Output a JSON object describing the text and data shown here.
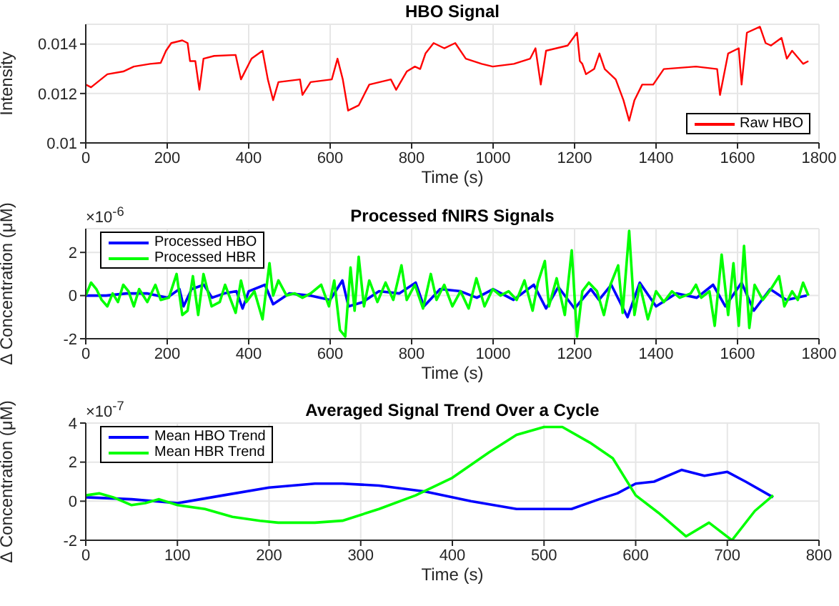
{
  "chart_data": [
    {
      "type": "line",
      "title": "HBO Signal",
      "xlabel": "Time (s)",
      "ylabel": "Intensity",
      "xlim": [
        0,
        1800
      ],
      "xticks": [
        0,
        200,
        400,
        600,
        800,
        1000,
        1200,
        1400,
        1600,
        1800
      ],
      "ylim": [
        0.01,
        0.0148
      ],
      "yticks": [
        0.01,
        0.012,
        0.014
      ],
      "grid": true,
      "legend": "bottom right",
      "series": [
        {
          "name": "Raw HBO",
          "color": "#ff0000",
          "x": [
            0,
            13,
            53,
            92,
            118,
            158,
            184,
            197,
            210,
            237,
            250,
            256,
            269,
            279,
            289,
            315,
            368,
            381,
            407,
            434,
            447,
            460,
            473,
            526,
            532,
            552,
            604,
            618,
            631,
            644,
            670,
            696,
            749,
            762,
            788,
            808,
            821,
            834,
            854,
            880,
            907,
            933,
            972,
            999,
            1051,
            1091,
            1104,
            1117,
            1130,
            1183,
            1206,
            1213,
            1219,
            1228,
            1248,
            1261,
            1274,
            1301,
            1320,
            1334,
            1347,
            1366,
            1393,
            1419,
            1498,
            1550,
            1557,
            1577,
            1603,
            1610,
            1623,
            1655,
            1669,
            1682,
            1708,
            1721,
            1734,
            1761,
            1774
          ],
          "values": [
            0.01236,
            0.01225,
            0.01278,
            0.01289,
            0.01309,
            0.0132,
            0.01324,
            0.01373,
            0.01404,
            0.01415,
            0.01404,
            0.01331,
            0.01331,
            0.01215,
            0.01341,
            0.01352,
            0.01356,
            0.01257,
            0.01341,
            0.01373,
            0.01257,
            0.01173,
            0.01246,
            0.01257,
            0.01194,
            0.01246,
            0.01257,
            0.01341,
            0.01257,
            0.01131,
            0.01152,
            0.01236,
            0.01257,
            0.01215,
            0.01289,
            0.01309,
            0.01299,
            0.01362,
            0.01404,
            0.01383,
            0.01404,
            0.01341,
            0.0132,
            0.01309,
            0.0132,
            0.01341,
            0.01383,
            0.01236,
            0.01373,
            0.01394,
            0.01446,
            0.01331,
            0.0132,
            0.01278,
            0.01299,
            0.01362,
            0.01299,
            0.01257,
            0.01173,
            0.0109,
            0.01173,
            0.01236,
            0.01236,
            0.01299,
            0.01309,
            0.01299,
            0.01194,
            0.01362,
            0.01383,
            0.01236,
            0.01446,
            0.0147,
            0.01404,
            0.01394,
            0.01425,
            0.01341,
            0.01373,
            0.0132,
            0.01331
          ]
        }
      ]
    },
    {
      "type": "line",
      "title": "Processed fNIRS Signals",
      "xlabel": "Time (s)",
      "ylabel": "Δ Concentration (μM)",
      "annotations": [
        "×10$^{-6}$"
      ],
      "xlim": [
        0,
        1800
      ],
      "xticks": [
        0,
        200,
        400,
        600,
        800,
        1000,
        1200,
        1400,
        1600,
        1800
      ],
      "ylim": [
        -2,
        3.1
      ],
      "yticks": [
        -2,
        0,
        2
      ],
      "grid": true,
      "legend": "top left",
      "series": [
        {
          "name": "Processed HBO",
          "color": "#0000ff",
          "x": [
            0,
            50,
            100,
            150,
            200,
            230,
            240,
            260,
            290,
            310,
            340,
            370,
            385,
            400,
            440,
            460,
            500,
            550,
            600,
            630,
            645,
            680,
            720,
            770,
            810,
            830,
            870,
            920,
            960,
            1000,
            1050,
            1100,
            1130,
            1160,
            1200,
            1240,
            1260,
            1290,
            1330,
            1360,
            1400,
            1450,
            1500,
            1540,
            1570,
            1610,
            1640,
            1680,
            1720,
            1770
          ],
          "values": [
            0,
            0,
            0.1,
            0.1,
            -0.1,
            0.3,
            -0.5,
            0.3,
            0.5,
            -0.1,
            0.1,
            0.2,
            -0.6,
            0.2,
            0.5,
            -0.4,
            0.1,
            0,
            -0.2,
            0.7,
            -0.5,
            -0.3,
            0.2,
            0.1,
            0.6,
            -0.5,
            0.3,
            0.2,
            -0.1,
            0.3,
            -0.2,
            0.5,
            -0.6,
            0.4,
            -0.6,
            0.3,
            -0.2,
            0.5,
            -1.0,
            0.6,
            -0.5,
            0.1,
            -0.1,
            0.5,
            -0.5,
            0.6,
            -0.7,
            0.3,
            -0.2,
            0
          ]
        },
        {
          "name": "Processed HBR",
          "color": "#00ff00",
          "x": [
            0,
            13,
            26,
            39,
            53,
            66,
            79,
            92,
            105,
            118,
            131,
            151,
            171,
            184,
            204,
            223,
            237,
            250,
            263,
            276,
            289,
            309,
            329,
            342,
            368,
            381,
            394,
            414,
            434,
            451,
            460,
            473,
            493,
            513,
            532,
            552,
            578,
            597,
            610,
            624,
            637,
            650,
            660,
            670,
            683,
            696,
            716,
            736,
            755,
            775,
            788,
            808,
            828,
            847,
            861,
            880,
            900,
            920,
            940,
            959,
            979,
            999,
            1018,
            1038,
            1058,
            1077,
            1097,
            1110,
            1127,
            1137,
            1156,
            1176,
            1193,
            1206,
            1219,
            1235,
            1255,
            1272,
            1288,
            1307,
            1318,
            1334,
            1347,
            1360,
            1380,
            1400,
            1419,
            1439,
            1458,
            1485,
            1498,
            1511,
            1531,
            1544,
            1561,
            1577,
            1590,
            1603,
            1616,
            1629,
            1642,
            1662,
            1682,
            1702,
            1715,
            1734,
            1748,
            1761,
            1774
          ],
          "values": [
            0,
            0.6,
            0.3,
            -0.2,
            -0.5,
            0.1,
            -0.3,
            0.5,
            0.2,
            -0.5,
            0.3,
            -0.3,
            0.5,
            -0.2,
            -0.1,
            1.0,
            -0.9,
            -0.7,
            0.9,
            -0.9,
            1.0,
            -0.5,
            -0.3,
            0.5,
            -0.8,
            0.7,
            -0.3,
            0.2,
            -1.1,
            1.5,
            0,
            0.7,
            0,
            0.1,
            -0.1,
            0.1,
            0.5,
            -0.5,
            0.7,
            -1.6,
            -1.9,
            1.3,
            -0.7,
            1.8,
            -0.5,
            0.7,
            -0.3,
            0.6,
            -0.2,
            1.4,
            -0.2,
            0.5,
            -0.6,
            1.0,
            -0.2,
            0.5,
            -0.5,
            0.2,
            -0.6,
            0.8,
            -0.5,
            0.3,
            0,
            0.2,
            -0.2,
            0.7,
            -0.7,
            0.6,
            1.6,
            -0.5,
            0.8,
            -0.9,
            2.1,
            -1.9,
            0.2,
            0.6,
            0.2,
            -0.9,
            0.5,
            1.4,
            -0.8,
            3.0,
            -0.9,
            0.5,
            -1.1,
            0.2,
            -0.3,
            0.2,
            -0.1,
            0.1,
            0.5,
            -0.1,
            0.2,
            -1.4,
            1.9,
            -0.9,
            1.5,
            -1.4,
            2.3,
            -1.5,
            0.5,
            -0.2,
            0.3,
            0.9,
            -0.5,
            0.2,
            -0.2,
            0.6,
            0
          ]
        }
      ]
    },
    {
      "type": "line",
      "title": "Averaged Signal Trend Over a Cycle",
      "xlabel": "Time (s)",
      "ylabel": "Δ Concentration (μM)",
      "annotations": [
        "×10$^{-7}$"
      ],
      "xlim": [
        0,
        800
      ],
      "xticks": [
        0,
        100,
        200,
        300,
        400,
        500,
        600,
        700,
        800
      ],
      "ylim": [
        -2,
        4
      ],
      "yticks": [
        -2,
        0,
        2,
        4
      ],
      "grid": true,
      "legend": "top left",
      "series": [
        {
          "name": "Mean HBO Trend",
          "color": "#0000ff",
          "x": [
            0,
            50,
            100,
            150,
            200,
            250,
            280,
            320,
            370,
            420,
            470,
            500,
            530,
            560,
            580,
            600,
            620,
            650,
            675,
            700,
            720,
            750
          ],
          "values": [
            0.2,
            0.1,
            -0.1,
            0.3,
            0.7,
            0.9,
            0.9,
            0.8,
            0.5,
            0,
            -0.4,
            -0.4,
            -0.4,
            0.1,
            0.4,
            0.9,
            1.0,
            1.6,
            1.3,
            1.5,
            1.0,
            0.2
          ]
        },
        {
          "name": "Mean HBR Trend",
          "color": "#00ff00",
          "x": [
            0,
            15,
            30,
            50,
            65,
            80,
            100,
            130,
            160,
            190,
            210,
            250,
            280,
            320,
            360,
            400,
            440,
            470,
            500,
            520,
            550,
            575,
            600,
            625,
            655,
            680,
            705,
            730,
            750
          ],
          "values": [
            0.3,
            0.4,
            0.2,
            -0.2,
            -0.1,
            0.1,
            -0.2,
            -0.4,
            -0.8,
            -1.0,
            -1.1,
            -1.1,
            -1.0,
            -0.4,
            0.3,
            1.2,
            2.5,
            3.4,
            3.8,
            3.8,
            3.0,
            2.2,
            0.3,
            -0.6,
            -1.8,
            -1.1,
            -2.0,
            -0.5,
            0.3
          ]
        }
      ]
    }
  ]
}
